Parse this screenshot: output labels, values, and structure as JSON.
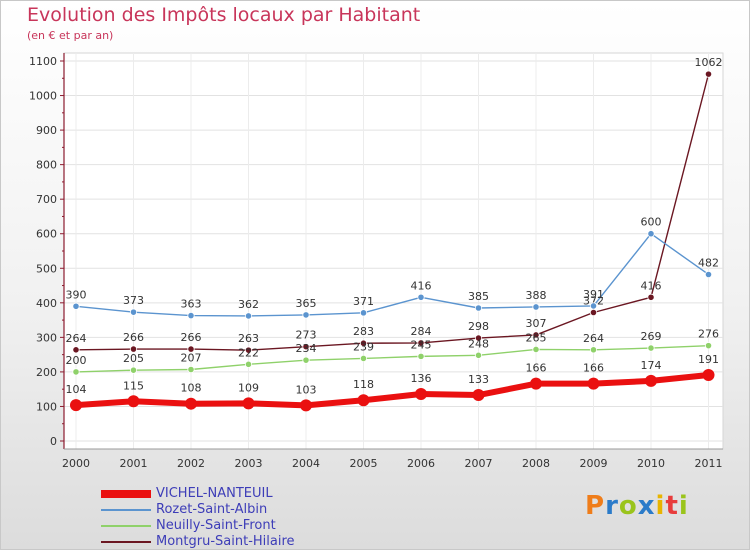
{
  "header": {
    "title": "Evolution des Impôts locaux par Habitant",
    "subtitle": "(en € et par an)"
  },
  "logo": {
    "text": "Proxiti",
    "colors": [
      "#ef7d1a",
      "#2b7bc9",
      "#9ac41c",
      "#2b7bc9",
      "#e8b400",
      "#e83c3c",
      "#9ac41c"
    ]
  },
  "chart_data": {
    "type": "line",
    "title": "Evolution des Impôts locaux par Habitant",
    "subtitle": "(en € et par an)",
    "xlabel": "",
    "ylabel": "",
    "categories": [
      "2000",
      "2001",
      "2002",
      "2003",
      "2004",
      "2005",
      "2006",
      "2007",
      "2008",
      "2009",
      "2010",
      "2011"
    ],
    "ylim": [
      0,
      1100
    ],
    "yticks": [
      0,
      100,
      200,
      300,
      400,
      500,
      600,
      700,
      800,
      900,
      1000,
      1100
    ],
    "grid": true,
    "legend_position": "bottom-left",
    "series": [
      {
        "name": "Montgru-Saint-Hilaire",
        "color": "#6b1722",
        "values": [
          264,
          266,
          266,
          263,
          273,
          283,
          284,
          298,
          307,
          372,
          416,
          1062
        ]
      },
      {
        "name": "Neuilly-Saint-Front",
        "color": "#8fd16a",
        "values": [
          200,
          205,
          207,
          222,
          234,
          239,
          245,
          248,
          265,
          264,
          269,
          276
        ]
      },
      {
        "name": "Rozet-Saint-Albin",
        "color": "#5b94cf",
        "values": [
          390,
          373,
          363,
          362,
          365,
          371,
          416,
          385,
          388,
          391,
          600,
          482
        ]
      },
      {
        "name": "VICHEL-NANTEUIL",
        "color": "#ea1010",
        "values": [
          104,
          115,
          108,
          109,
          103,
          118,
          136,
          133,
          166,
          166,
          174,
          191
        ]
      }
    ]
  }
}
